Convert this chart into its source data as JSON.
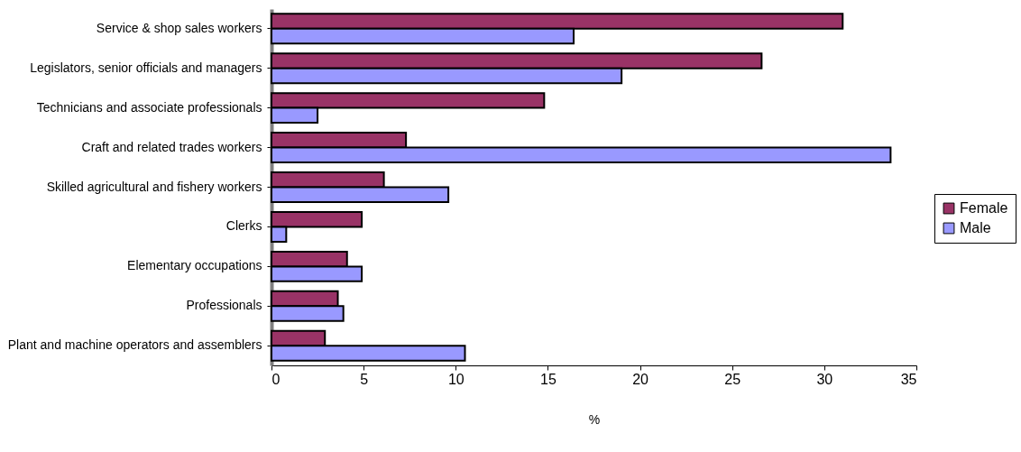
{
  "chart_data": {
    "type": "bar",
    "orientation": "horizontal",
    "xlabel": "%",
    "categories": [
      "Service & shop sales workers",
      "Legislators, senior officials and managers",
      "Technicians and associate professionals",
      "Craft and related trades workers",
      "Skilled agricultural and fishery workers",
      "Clerks",
      "Elementary occupations",
      "Professionals",
      "Plant and machine operators and assemblers"
    ],
    "series": [
      {
        "name": "Female",
        "color": "#993366",
        "values": [
          31.0,
          26.6,
          14.8,
          7.3,
          6.1,
          4.9,
          4.1,
          3.6,
          2.9
        ]
      },
      {
        "name": "Male",
        "color": "#9999ff",
        "values": [
          16.4,
          19.0,
          2.5,
          33.6,
          9.6,
          0.8,
          4.9,
          3.9,
          10.5
        ]
      }
    ],
    "xlim": [
      0,
      35
    ],
    "xticks": [
      0,
      5,
      10,
      15,
      20,
      25,
      30,
      35
    ],
    "grid": false,
    "legend": "right"
  }
}
